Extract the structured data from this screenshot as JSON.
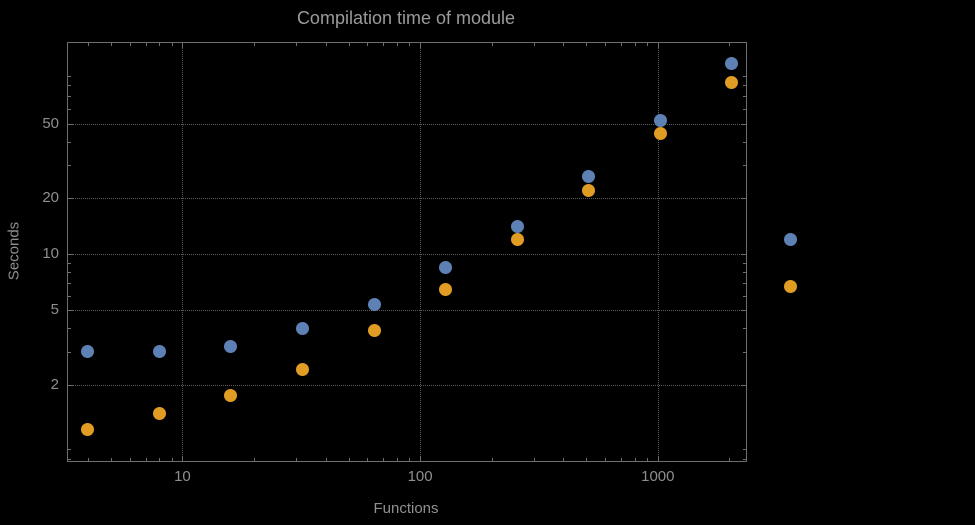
{
  "title": "Compilation time of module",
  "chart_data": {
    "type": "scatter",
    "title": "Compilation time of module",
    "xlabel": "Functions",
    "ylabel": "Seconds",
    "x_scale": "log",
    "y_scale": "log",
    "x_range": [
      3.3,
      2350
    ],
    "y_range": [
      0.78,
      135
    ],
    "grid": "dotted",
    "x": [
      4,
      8,
      16,
      32,
      64,
      128,
      256,
      512,
      1024,
      2048
    ],
    "series": [
      {
        "name": "blue",
        "color": "#5E81B5",
        "values": [
          3.0,
          3.0,
          3.2,
          4.0,
          5.4,
          8.5,
          14,
          26,
          52,
          105
        ]
      },
      {
        "name": "orange",
        "color": "#E19C24",
        "values": [
          1.15,
          1.4,
          1.75,
          2.4,
          3.9,
          6.5,
          12,
          22,
          44,
          83
        ]
      }
    ],
    "x_ticks": [
      {
        "value": 10,
        "label": "10"
      },
      {
        "value": 100,
        "label": "100"
      },
      {
        "value": 1000,
        "label": "1000"
      }
    ],
    "y_ticks": [
      {
        "value": 2,
        "label": "2"
      },
      {
        "value": 5,
        "label": "5"
      },
      {
        "value": 10,
        "label": "10"
      },
      {
        "value": 20,
        "label": "20"
      },
      {
        "value": 50,
        "label": "50"
      }
    ],
    "legend_markers": [
      {
        "name": "blue",
        "color": "#5E81B5"
      },
      {
        "name": "orange",
        "color": "#E19C24"
      }
    ]
  },
  "colors": {
    "background": "#000000",
    "frame": "#6e6e6e",
    "grid": "#5c5c5c",
    "text": "#8f8f8f",
    "series_blue": "#5E81B5",
    "series_orange": "#E19C24"
  }
}
